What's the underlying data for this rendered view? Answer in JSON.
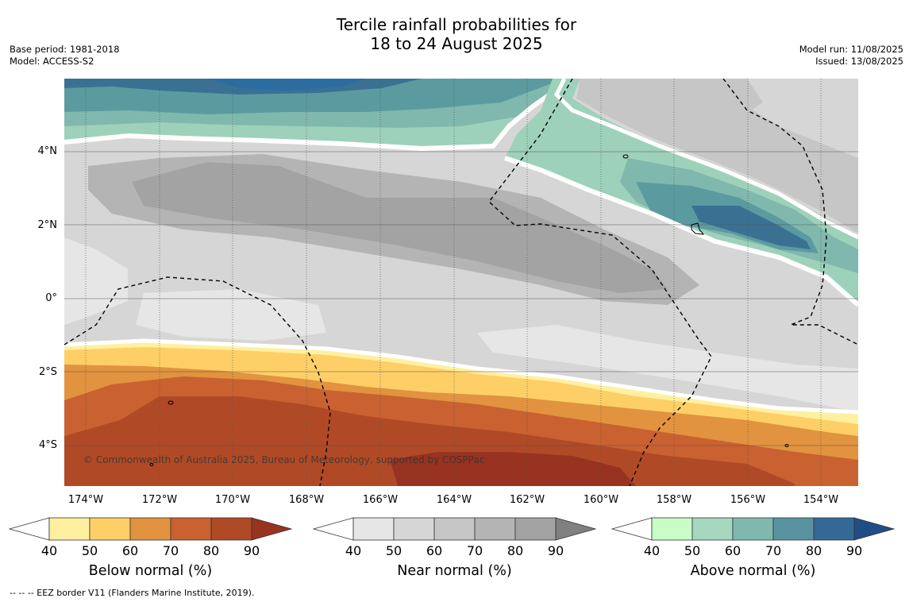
{
  "title": {
    "line1": "Tercile rainfall probabilities for",
    "line2": "18 to 24 August 2025"
  },
  "meta": {
    "base_period": "Base period: 1981-2018",
    "model": "Model: ACCESS-S2",
    "model_run": "Model run: 11/08/2025",
    "issued": "Issued: 13/08/2025"
  },
  "map": {
    "lat_ticks": [
      "4°N",
      "2°N",
      "0°",
      "2°S",
      "4°S"
    ],
    "lon_ticks": [
      "174°W",
      "172°W",
      "170°W",
      "168°W",
      "166°W",
      "164°W",
      "162°W",
      "160°W",
      "158°W",
      "156°W",
      "154°W"
    ],
    "copyright": "© Commonwealth of Australia 2025, Bureau of Meteorology, supported by COSPPac",
    "colors": {
      "near_40": "#e6e6e6",
      "near_50": "#d6d6d6",
      "near_60": "#c6c6c6",
      "near_70": "#b4b4b4",
      "near_80": "#a3a3a3",
      "below_40": "#fff0a0",
      "below_50": "#fecf67",
      "below_60": "#e1933f",
      "below_70": "#c96131",
      "below_80": "#b04a26",
      "below_90": "#973320",
      "above_40": "#c8fdc8",
      "above_50": "#9ed1ba",
      "above_60": "#80b8ae",
      "above_70": "#5b9ba0",
      "above_80": "#3a7193",
      "above_90": "#2b6ca1"
    }
  },
  "colorbars": [
    {
      "label": "Below normal (%)",
      "ticks": [
        "40",
        "50",
        "60",
        "70",
        "80",
        "90"
      ],
      "colors": [
        "#ffffff",
        "#fff0a0",
        "#fecf67",
        "#e1933f",
        "#c96131",
        "#b04a26",
        "#973320"
      ]
    },
    {
      "label": "Near normal (%)",
      "ticks": [
        "40",
        "50",
        "60",
        "70",
        "80",
        "90"
      ],
      "colors": [
        "#ffffff",
        "#e6e6e6",
        "#d6d6d6",
        "#c6c6c6",
        "#b4b4b4",
        "#a3a3a3",
        "#808080"
      ]
    },
    {
      "label": "Above normal (%)",
      "ticks": [
        "40",
        "50",
        "60",
        "70",
        "80",
        "90"
      ],
      "colors": [
        "#ffffff",
        "#c8fdc8",
        "#a6d8c0",
        "#80b8ae",
        "#5a93a0",
        "#346897",
        "#1f4e86"
      ]
    }
  ],
  "footer": "--  --  -- EEZ border V11 (Flanders Marine Institute, 2019)."
}
